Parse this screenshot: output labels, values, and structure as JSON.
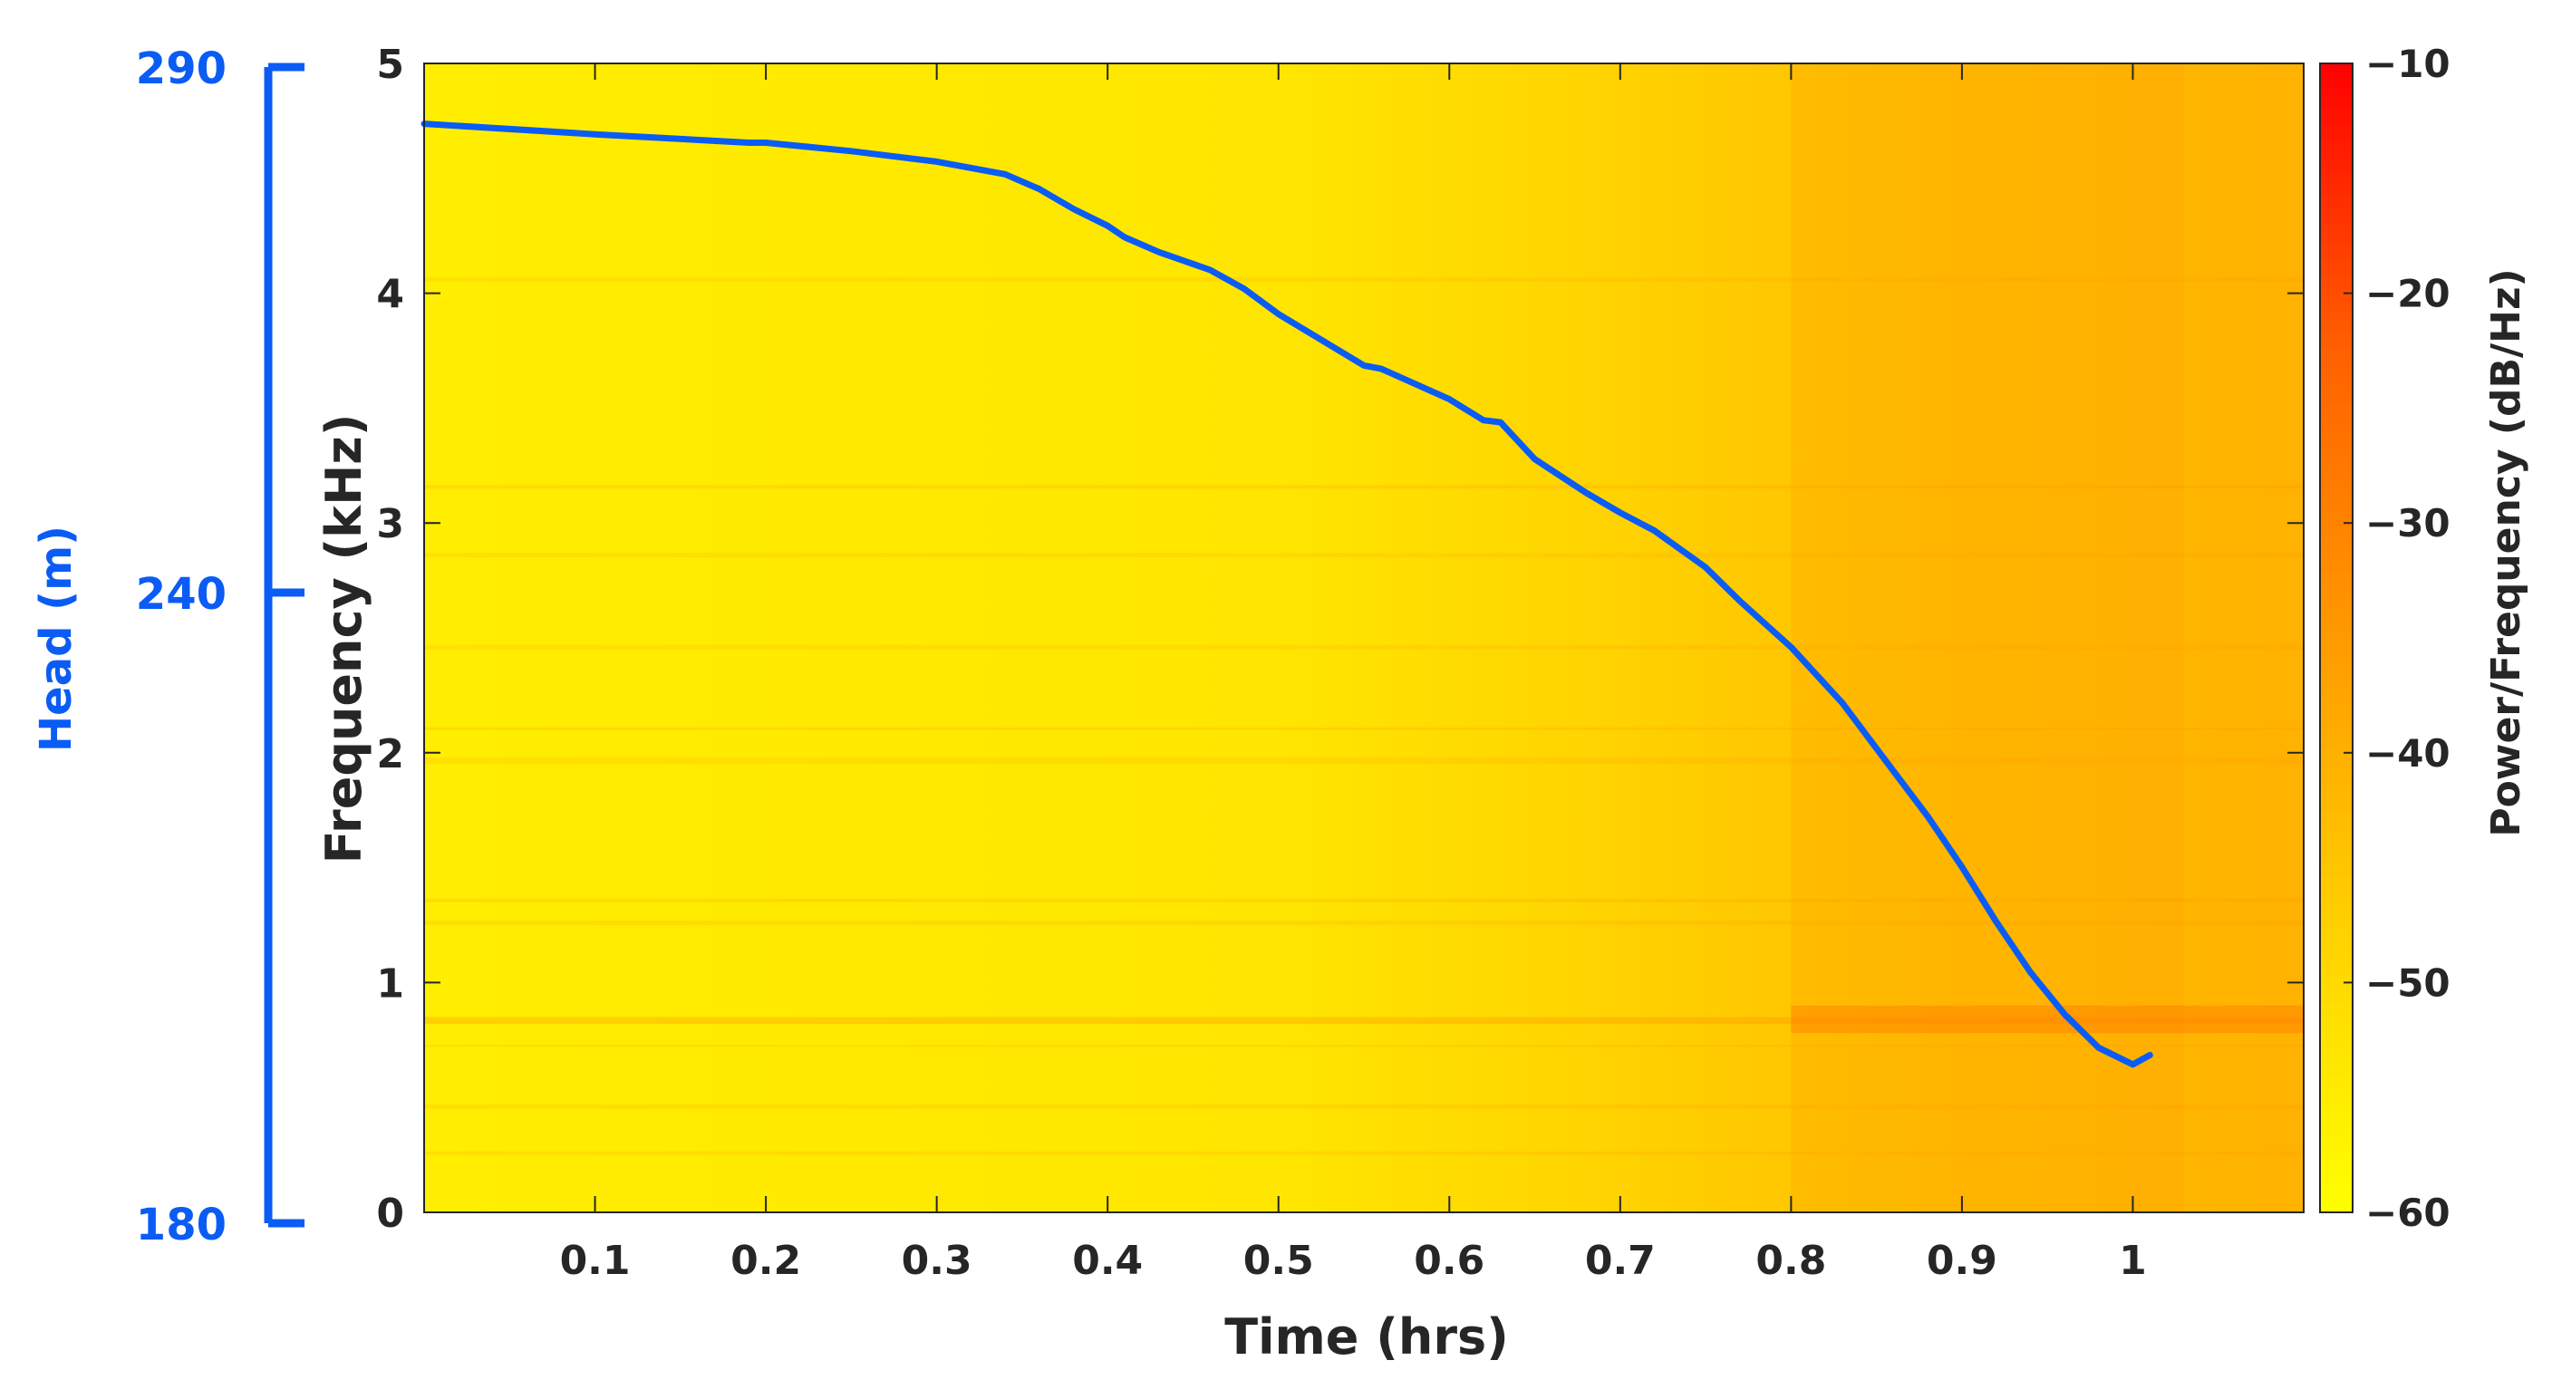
{
  "chart_data": {
    "type": "heatmap",
    "title": "",
    "xlabel": "Time (hrs)",
    "ylabel": "Frequency (kHz)",
    "xlim": [
      0,
      1.1
    ],
    "ylim": [
      0,
      5
    ],
    "x_ticks": [
      0.1,
      0.2,
      0.3,
      0.4,
      0.5,
      0.6,
      0.7,
      0.8,
      0.9,
      1
    ],
    "x_tick_labels": [
      "0.1",
      "0.2",
      "0.3",
      "0.4",
      "0.5",
      "0.6",
      "0.7",
      "0.8",
      "0.9",
      "1"
    ],
    "y_ticks": [
      0,
      1,
      2,
      3,
      4,
      5
    ],
    "y_tick_labels": [
      "0",
      "1",
      "2",
      "3",
      "4",
      "5"
    ],
    "colorbar": {
      "label": "Power/Frequency (dB/Hz)",
      "range": [
        -60,
        -10
      ],
      "ticks": [
        -10,
        -20,
        -30,
        -40,
        -50,
        -60
      ],
      "tick_labels": [
        "−10",
        "−20",
        "−30",
        "−40",
        "−50",
        "−60"
      ],
      "colormap": [
        "#ffff00",
        "#ffd000",
        "#ff9a00",
        "#ff6000",
        "#ff0000"
      ]
    },
    "secondary_axis": {
      "label": "Head (m)",
      "range": [
        180,
        290
      ],
      "ticks": [
        180,
        240,
        290
      ],
      "tick_labels": [
        "180",
        "240",
        "290"
      ],
      "color": "#0a5cf5"
    },
    "series": [
      {
        "name": "Head",
        "color": "#0a5cf5",
        "x": [
          0.0,
          0.1,
          0.19,
          0.2,
          0.25,
          0.3,
          0.34,
          0.36,
          0.38,
          0.4,
          0.41,
          0.43,
          0.46,
          0.48,
          0.5,
          0.55,
          0.56,
          0.6,
          0.62,
          0.63,
          0.65,
          0.68,
          0.7,
          0.72,
          0.75,
          0.77,
          0.8,
          0.83,
          0.86,
          0.88,
          0.9,
          0.92,
          0.94,
          0.96,
          0.98,
          1.0,
          1.01
        ],
        "y": [
          284.6,
          283.6,
          282.8,
          282.8,
          282.0,
          281.0,
          279.8,
          278.4,
          276.5,
          274.9,
          273.8,
          272.4,
          270.7,
          268.9,
          266.5,
          261.6,
          261.3,
          258.4,
          256.4,
          256.2,
          252.7,
          249.5,
          247.6,
          245.9,
          242.4,
          239.2,
          234.8,
          229.5,
          223.0,
          218.7,
          213.9,
          208.7,
          203.9,
          199.9,
          196.7,
          195.1,
          196.0
        ]
      }
    ]
  }
}
